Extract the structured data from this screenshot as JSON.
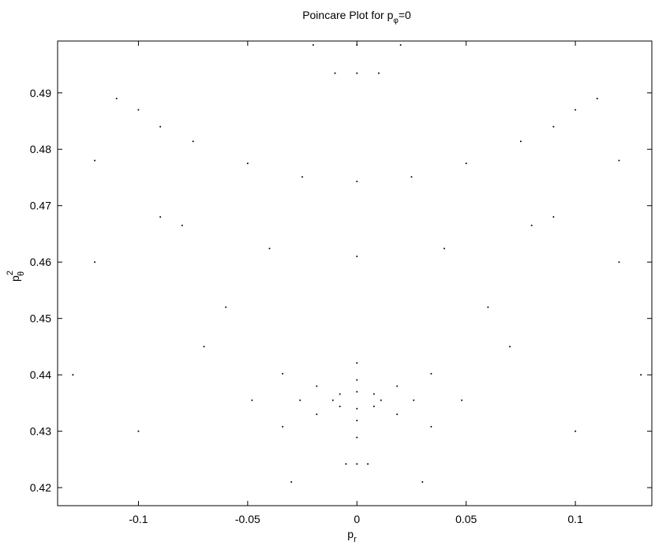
{
  "chart_data": {
    "type": "scatter",
    "title": {
      "text": "Poincare Plot for p",
      "subscript": "φ",
      "suffix": "=0"
    },
    "x_label": {
      "text": "p",
      "subscript": "r"
    },
    "y_label": {
      "text": "p",
      "superscript": "2",
      "subscript": "θ"
    },
    "color": "#000000",
    "xlim": [
      -0.137,
      0.135
    ],
    "ylim": [
      0.4168,
      0.4992
    ],
    "xticks": [
      -0.1,
      -0.05,
      0,
      0.05,
      0.1
    ],
    "yticks": [
      0.42,
      0.43,
      0.44,
      0.45,
      0.46,
      0.47,
      0.48,
      0.49
    ],
    "x": [
      0.011,
      0.0078,
      0,
      -0.0078,
      -0.011,
      -0.0078,
      0,
      0.0078,
      0.026,
      0.0184,
      0,
      -0.0184,
      -0.026,
      -0.0184,
      0,
      0.0184,
      0.048,
      0.034,
      0,
      -0.034,
      -0.048,
      -0.034,
      0,
      0.034,
      -0.1,
      -0.075,
      -0.05,
      -0.025,
      0,
      0.025,
      0.05,
      0.075,
      0.1,
      -0.08,
      -0.04,
      0,
      0.04,
      0.08,
      -0.01,
      0,
      0.01,
      -0.02,
      0,
      0.02,
      -0.005,
      0,
      0.005,
      -0.12,
      -0.11,
      -0.09,
      -0.06,
      -0.13,
      0.12,
      0.11,
      0.09,
      0.06,
      0.13,
      -0.1,
      0.1,
      -0.07,
      0.07,
      -0.12,
      0.12,
      -0.03,
      0.03,
      -0.09,
      0.09
    ],
    "y": [
      0.4355,
      0.4366,
      0.437,
      0.4366,
      0.4355,
      0.4344,
      0.434,
      0.4344,
      0.4355,
      0.438,
      0.4391,
      0.438,
      0.4355,
      0.433,
      0.4319,
      0.433,
      0.4355,
      0.4402,
      0.4421,
      0.4402,
      0.4355,
      0.4308,
      0.4289,
      0.4308,
      0.487,
      0.4814,
      0.4775,
      0.4751,
      0.4743,
      0.4751,
      0.4775,
      0.4814,
      0.487,
      0.4665,
      0.4624,
      0.461,
      0.4624,
      0.4665,
      0.4935,
      0.4935,
      0.4935,
      0.4985,
      0.4985,
      0.4985,
      0.4242,
      0.4242,
      0.4242,
      0.478,
      0.489,
      0.484,
      0.452,
      0.44,
      0.478,
      0.489,
      0.484,
      0.452,
      0.44,
      0.43,
      0.43,
      0.445,
      0.445,
      0.46,
      0.46,
      0.421,
      0.421,
      0.468,
      0.468
    ]
  }
}
